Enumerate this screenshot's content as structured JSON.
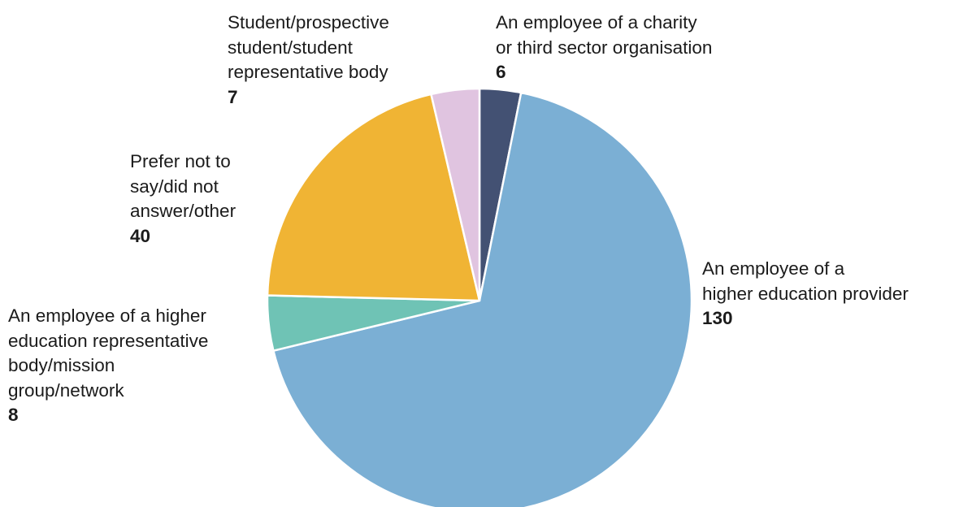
{
  "chart_data": {
    "type": "pie",
    "title": "",
    "slices": [
      {
        "label_lines": [
          "An employee of a",
          "higher education provider"
        ],
        "value": 130,
        "color": "#7bafd4"
      },
      {
        "label_lines": [
          "An employee of a higher",
          "education representative",
          "body/mission",
          "group/network"
        ],
        "value": 8,
        "color": "#6fc3b5"
      },
      {
        "label_lines": [
          "Prefer not to",
          "say/did not",
          "answer/other"
        ],
        "value": 40,
        "color": "#f0b434"
      },
      {
        "label_lines": [
          "Student/prospective",
          "student/student",
          "representative body"
        ],
        "value": 7,
        "color": "#e0c4e0"
      },
      {
        "label_lines": [
          "An employee of a charity",
          "or third sector organisation"
        ],
        "value": 6,
        "color": "#435173"
      }
    ],
    "legend": "none (direct labels)"
  }
}
